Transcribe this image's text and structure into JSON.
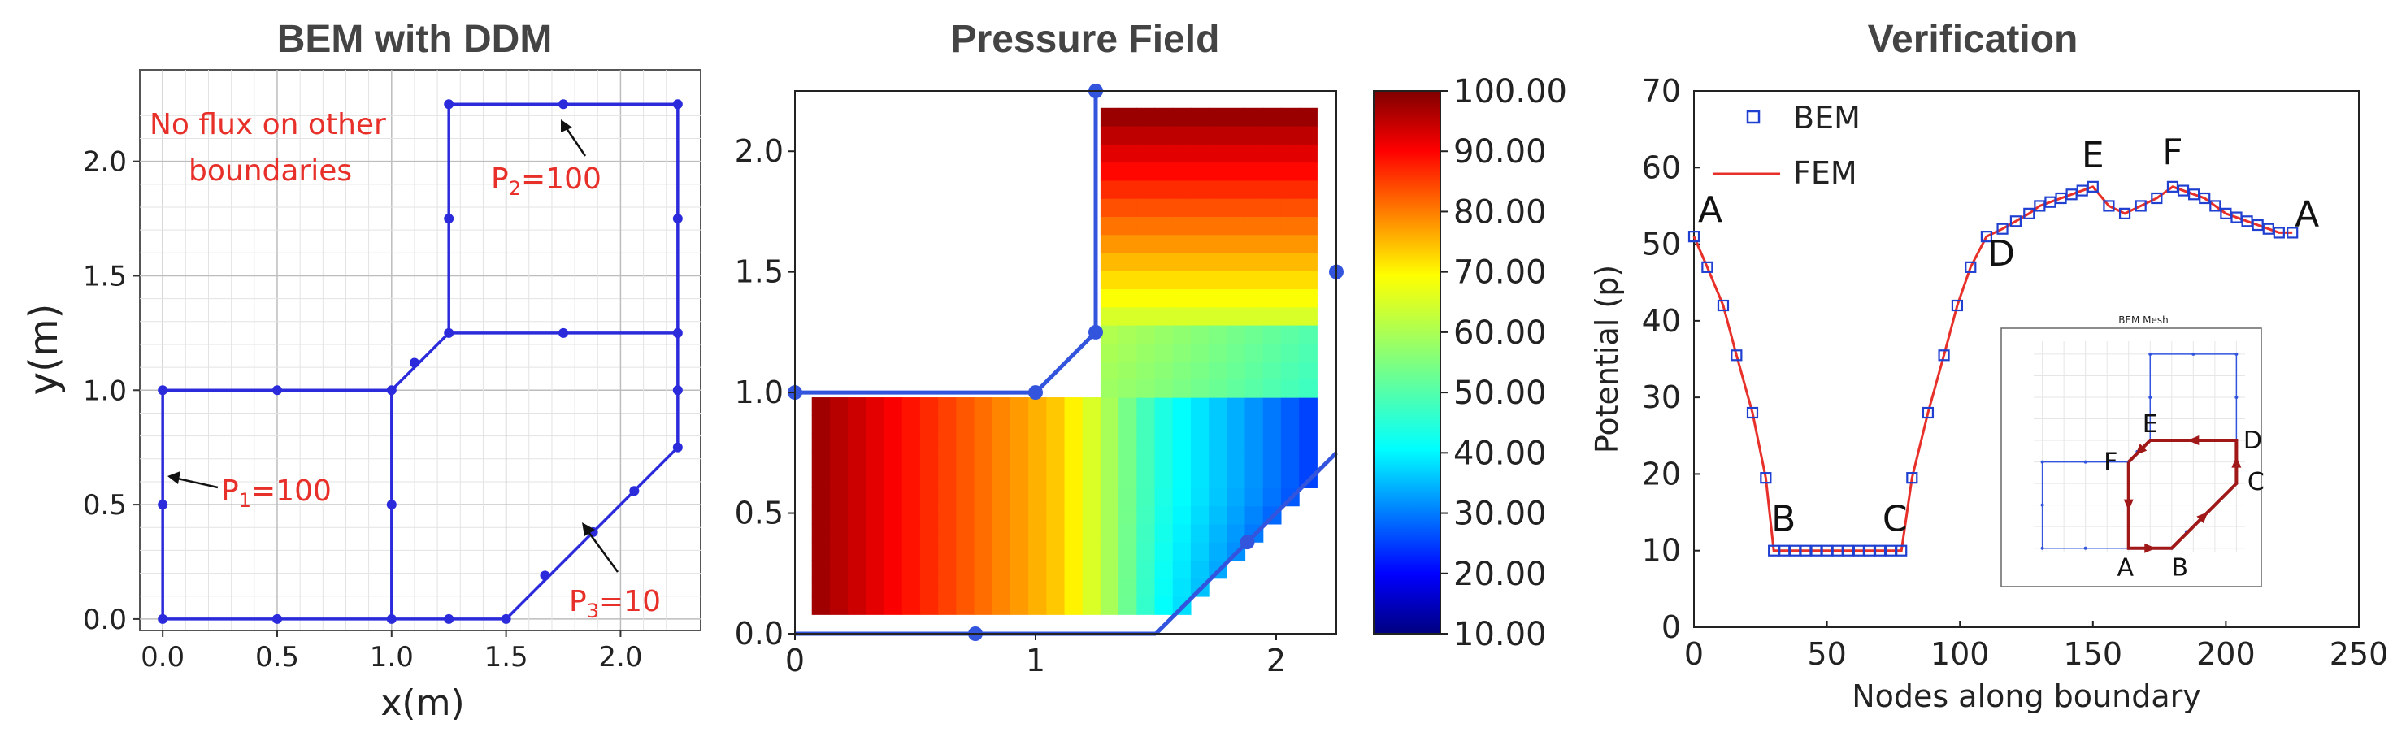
{
  "panels": {
    "ddm": {
      "title": "BEM with DDM",
      "xlabel": "x(m)",
      "ylabel": "y(m)",
      "xlim": [
        -0.1,
        2.35
      ],
      "ylim": [
        -0.05,
        2.4
      ],
      "xticks": [
        "0.0",
        "0.5",
        "1.0",
        "1.5",
        "2.0"
      ],
      "xtick_values": [
        0,
        0.5,
        1,
        1.5,
        2
      ],
      "yticks": [
        "0.0",
        "0.5",
        "1.0",
        "1.5",
        "2.0"
      ],
      "ytick_values": [
        0,
        0.5,
        1,
        1.5,
        2
      ],
      "note_line1": "No flux on other",
      "note_line2": "boundaries",
      "p1_label": "P",
      "p1_sub": "1",
      "p1_value": "=100",
      "p2_label": "P",
      "p2_sub": "2",
      "p2_value": "=100",
      "p3_label": "P",
      "p3_sub": "3",
      "p3_value": "=10"
    },
    "pressure": {
      "title": "Pressure Field",
      "xticks": [
        "0",
        "1",
        "2"
      ],
      "xtick_values": [
        0,
        1,
        2
      ],
      "yticks": [
        "0.0",
        "0.5",
        "1.0",
        "1.5",
        "2.0"
      ],
      "ytick_values": [
        0,
        0.5,
        1,
        1.5,
        2
      ],
      "colorbar_ticks": [
        "100.00",
        "90.00",
        "80.00",
        "70.00",
        "60.00",
        "50.00",
        "40.00",
        "30.00",
        "20.00",
        "10.00"
      ],
      "colorbar_range": [
        10,
        100
      ]
    },
    "verification": {
      "title": "Verification",
      "xlabel": "Nodes along boundary",
      "ylabel": "Potential (p)",
      "xticks": [
        "0",
        "50",
        "100",
        "150",
        "200",
        "250"
      ],
      "yticks": [
        "0",
        "10",
        "20",
        "30",
        "40",
        "50",
        "60",
        "70"
      ],
      "legend_bem": "BEM",
      "legend_fem": "FEM",
      "points": [
        "A",
        "B",
        "C",
        "D",
        "E",
        "F",
        "A"
      ],
      "inset_title": "BEM Mesh",
      "inset_points": [
        "A",
        "B",
        "C",
        "D",
        "E",
        "F"
      ]
    }
  },
  "chart_data": [
    {
      "type": "line",
      "title": "BEM with DDM",
      "xlabel": "x(m)",
      "ylabel": "y(m)",
      "grid": true,
      "xlim": [
        -0.1,
        2.35
      ],
      "ylim": [
        -0.05,
        2.4
      ],
      "segments": [
        [
          [
            0,
            0
          ],
          [
            1.5,
            0
          ],
          [
            2.25,
            0.75
          ],
          [
            2.25,
            2.25
          ],
          [
            1.25,
            2.25
          ],
          [
            1.25,
            1.25
          ],
          [
            1,
            1
          ],
          [
            0,
            1
          ],
          [
            0,
            0
          ]
        ],
        [
          [
            1,
            0
          ],
          [
            1,
            1
          ]
        ],
        [
          [
            1.25,
            1.25
          ],
          [
            2.25,
            1.25
          ]
        ]
      ],
      "nodes": [
        [
          0,
          0
        ],
        [
          0.5,
          0
        ],
        [
          1,
          0
        ],
        [
          1.25,
          0
        ],
        [
          1.5,
          0
        ],
        [
          0,
          0.5
        ],
        [
          0,
          1
        ],
        [
          0.5,
          1
        ],
        [
          1,
          1
        ],
        [
          1,
          0.5
        ],
        [
          1.1,
          1.12
        ],
        [
          1.25,
          1.25
        ],
        [
          1.75,
          1.25
        ],
        [
          2.25,
          1.25
        ],
        [
          1.25,
          1.75
        ],
        [
          1.25,
          2.25
        ],
        [
          1.75,
          2.25
        ],
        [
          2.25,
          2.25
        ],
        [
          2.25,
          1.75
        ],
        [
          2.25,
          1.0
        ],
        [
          2.25,
          0.75
        ],
        [
          1.67,
          0.19
        ],
        [
          1.88,
          0.38
        ],
        [
          2.06,
          0.56
        ]
      ],
      "annotations": [
        "No flux on other boundaries",
        "P1=100",
        "P2=100",
        "P3=10"
      ]
    },
    {
      "type": "heatmap",
      "title": "Pressure Field",
      "xlim": [
        0,
        2.25
      ],
      "ylim": [
        0,
        2.25
      ],
      "colorbar_range": [
        10,
        100
      ],
      "colormap": "jet",
      "field_description": "P1=100 at x=0, P2=100 at y=2.25, P3=10 on diagonal boundary"
    },
    {
      "type": "line",
      "title": "Verification",
      "xlabel": "Nodes along boundary",
      "ylabel": "Potential (p)",
      "xlim": [
        0,
        250
      ],
      "ylim": [
        0,
        70
      ],
      "series": [
        {
          "name": "BEM",
          "x": [
            0,
            5,
            11,
            16,
            22,
            27,
            30,
            34,
            38,
            42,
            46,
            50,
            54,
            58,
            62,
            66,
            70,
            74,
            78,
            82,
            88,
            94,
            99,
            104,
            110,
            116,
            121,
            126,
            130,
            134,
            138,
            142,
            146,
            150,
            156,
            162,
            168,
            174,
            180,
            184,
            188,
            192,
            196,
            200,
            204,
            208,
            212,
            216,
            220,
            225
          ],
          "y": [
            51,
            47,
            42,
            35.5,
            28,
            19.5,
            10,
            10,
            10,
            10,
            10,
            10,
            10,
            10,
            10,
            10,
            10,
            10,
            10,
            19.5,
            28,
            35.5,
            42,
            47,
            51,
            52,
            53,
            54,
            55,
            55.5,
            56,
            56.5,
            57,
            57.5,
            55,
            54,
            55,
            56,
            57.5,
            57,
            56.5,
            56,
            55,
            54,
            53.5,
            53,
            52.5,
            52,
            51.5,
            51.5
          ]
        },
        {
          "name": "FEM",
          "x": [
            0,
            5,
            11,
            16,
            22,
            27,
            30,
            78,
            82,
            88,
            94,
            99,
            104,
            110,
            116,
            121,
            126,
            130,
            134,
            138,
            142,
            146,
            150,
            156,
            162,
            168,
            174,
            180,
            184,
            188,
            192,
            196,
            200,
            204,
            208,
            212,
            216,
            220,
            225
          ],
          "y": [
            51,
            47,
            42,
            35.5,
            28,
            19.5,
            10,
            10,
            19.5,
            28,
            35.5,
            42,
            47,
            51,
            52,
            53,
            54,
            55,
            55.5,
            56,
            56.5,
            57,
            57.5,
            55,
            54,
            55,
            56,
            57.5,
            57,
            56.5,
            56,
            55,
            54,
            53.5,
            53,
            52.5,
            52,
            51.5,
            51.5
          ]
        }
      ],
      "point_labels": [
        {
          "label": "A",
          "x": 0,
          "y": 51
        },
        {
          "label": "B",
          "x": 30,
          "y": 10
        },
        {
          "label": "C",
          "x": 78,
          "y": 10
        },
        {
          "label": "D",
          "x": 110,
          "y": 51
        },
        {
          "label": "E",
          "x": 150,
          "y": 57.5
        },
        {
          "label": "F",
          "x": 180,
          "y": 57.5
        },
        {
          "label": "A",
          "x": 225,
          "y": 51.5
        }
      ],
      "legend": "top-left",
      "colors": {
        "BEM": "#1f3fd0",
        "FEM": "#e8302a"
      }
    }
  ]
}
